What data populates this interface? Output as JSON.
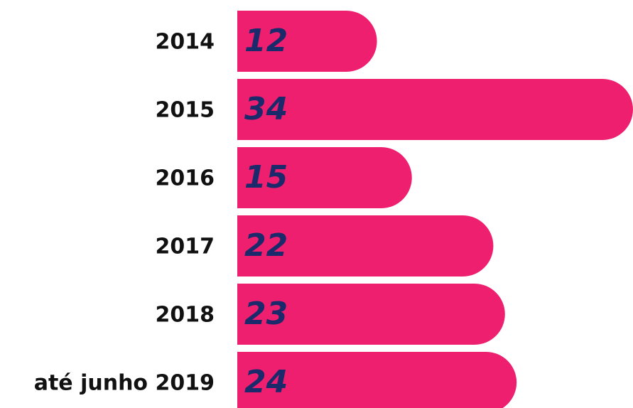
{
  "chart_data": {
    "type": "bar",
    "orientation": "horizontal",
    "categories": [
      "2014",
      "2015",
      "2016",
      "2017",
      "2018",
      "até junho 2019"
    ],
    "values": [
      12,
      34,
      15,
      22,
      23,
      24
    ],
    "color": "#ee1f6f",
    "label_color": "#1b2a6b"
  }
}
